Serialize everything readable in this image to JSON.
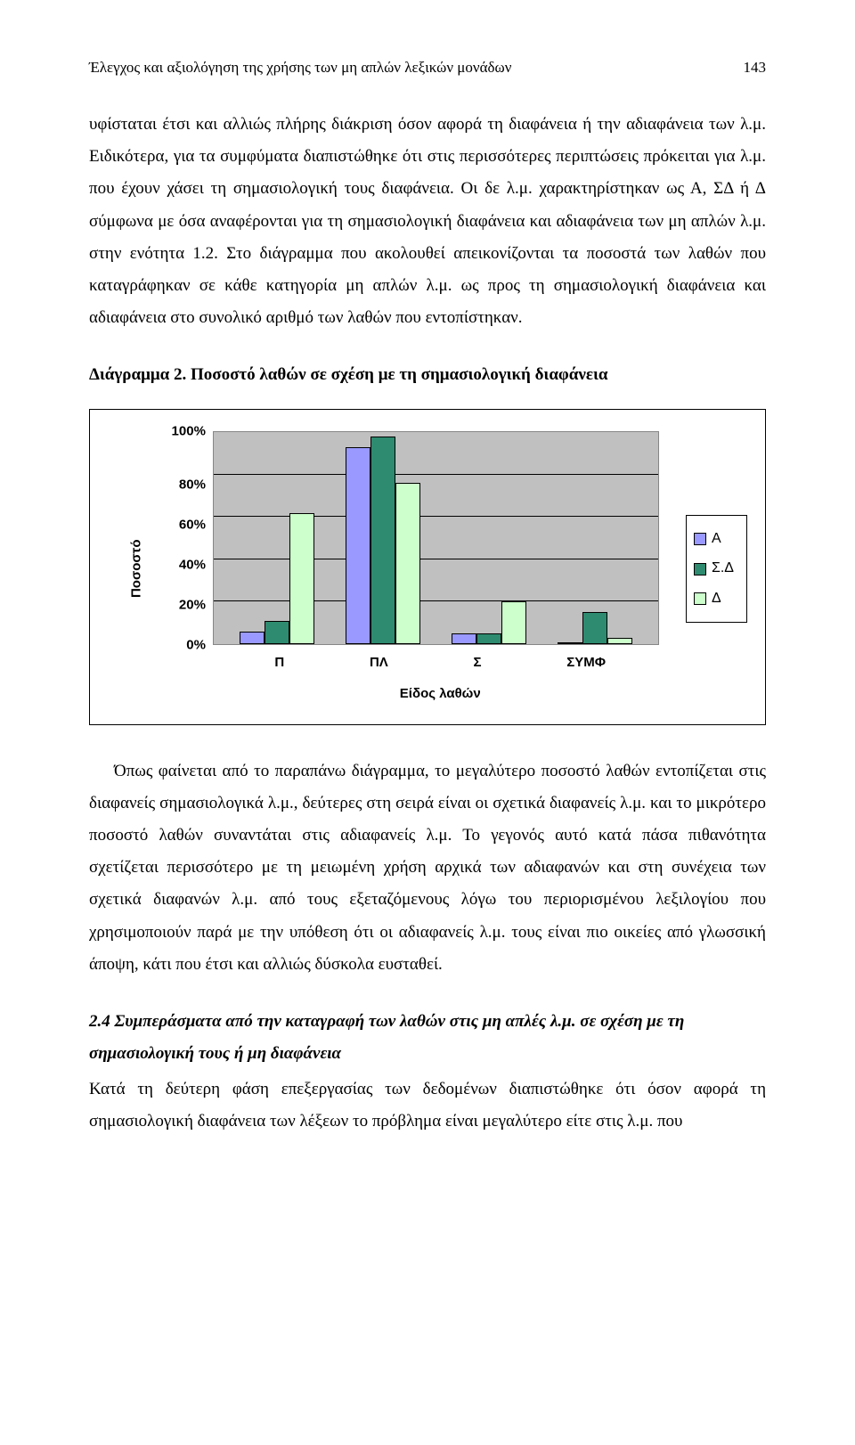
{
  "page": {
    "running_head": "Έλεγχος και αξιολόγηση της χρήσης των μη απλών λεξικών μονάδων",
    "page_number": "143"
  },
  "para1": "υφίσταται έτσι και αλλιώς πλήρης διάκριση όσον αφορά τη διαφάνεια ή την αδιαφάνεια των λ.μ. Ειδικότερα, για τα συμφύματα διαπιστώθηκε ότι στις περισσότερες περιπτώσεις πρόκειται για λ.μ. που έχουν χάσει τη σημασιολογική τους διαφάνεια. Οι δε λ.μ. χαρακτηρίστηκαν ως Α, ΣΔ ή Δ σύμφωνα με όσα αναφέρονται για τη σημασιολογική διαφάνεια και αδιαφάνεια των μη απλών λ.μ. στην ενότητα 1.2. Στο διάγραμμα που ακολουθεί απεικονίζονται τα ποσοστά των λαθών που καταγράφηκαν σε κάθε κατηγορία μη απλών λ.μ. ως προς τη σημασιολογική διαφάνεια και αδιαφάνεια στο συνολικό αριθμό των λαθών που εντοπίστηκαν.",
  "chart_title": "Διάγραμμα 2. Ποσοστό λαθών σε σχέση με τη σημασιολογική διαφάνεια",
  "chart": {
    "type": "bar",
    "ylabel": "Ποσοστό",
    "xlabel": "Είδος λαθών",
    "categories": [
      "Π",
      "ΠΛ",
      "Σ",
      "ΣΥΜΦ"
    ],
    "series": [
      {
        "name": "Α",
        "color": "#9999ff",
        "values": [
          6,
          93,
          5,
          0
        ]
      },
      {
        "name": "Σ.Δ",
        "color": "#2e8b6f",
        "values": [
          11,
          98,
          5,
          15
        ]
      },
      {
        "name": "Δ",
        "color": "#ccffcc",
        "values": [
          62,
          76,
          20,
          3
        ]
      }
    ],
    "ylim": [
      0,
      100
    ],
    "ytick_step": 20,
    "yticks": [
      "100%",
      "80%",
      "60%",
      "40%",
      "20%",
      "0%"
    ],
    "plot_background": "#c0c0c0",
    "panel_background": "#ffffff",
    "grid_color": "#000000",
    "bar_border": "#000000",
    "legend_border": "#000000",
    "font_family": "Arial",
    "label_fontsize": 15
  },
  "para2": "Όπως φαίνεται από το παραπάνω διάγραμμα, το μεγαλύτερο ποσοστό λαθών εντοπίζεται στις διαφανείς σημασιολογικά λ.μ., δεύτερες στη σειρά είναι οι σχετικά διαφανείς λ.μ. και το μικρότερο ποσοστό λαθών συναντάται στις αδιαφανείς λ.μ. Το γεγονός αυτό κατά πάσα πιθανότητα σχετίζεται περισσότερο με τη μειωμένη χρήση αρχικά των αδιαφανών και στη συνέχεια των σχετικά διαφανών λ.μ. από τους εξεταζόμενους λόγω του περιορισμένου λεξιλογίου που χρησιμοποιούν παρά με την υπόθεση ότι οι αδιαφανείς λ.μ. τους είναι πιο οικείες από γλωσσική άποψη, κάτι που έτσι και αλλιώς δύσκολα ευσταθεί.",
  "section_heading": "2.4 Συμπεράσματα από την καταγραφή των λαθών στις μη απλές λ.μ. σε σχέση με τη σημασιολογική τους ή μη διαφάνεια",
  "para3": "Κατά τη δεύτερη φάση επεξεργασίας των δεδομένων διαπιστώθηκε ότι όσον αφορά τη σημασιολογική διαφάνεια των λέξεων το πρόβλημα είναι μεγαλύτερο είτε στις λ.μ. που"
}
